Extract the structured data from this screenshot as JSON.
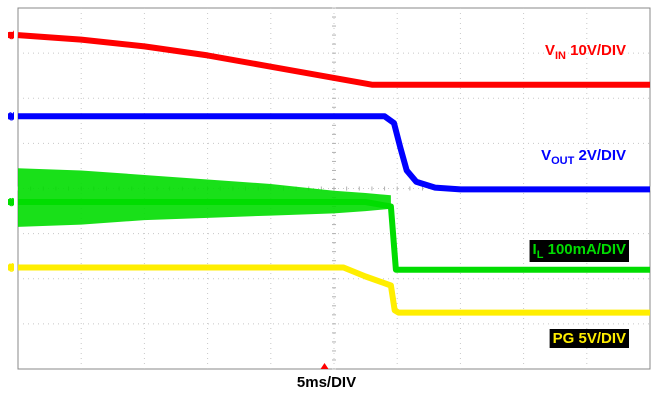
{
  "chart_data": {
    "type": "line",
    "title": "",
    "timebase_label": "5ms/DIV",
    "x_unit": "divisions",
    "xlim": [
      0,
      10
    ],
    "ylim": [
      0,
      8
    ],
    "grid": true,
    "trigger_marker_div": 4.85,
    "channels": [
      {
        "id": "ch1",
        "marker": "C1",
        "label_main": "V",
        "label_sub": "IN",
        "label_rest": " 10V/DIV",
        "color": "#ff0000",
        "label_bg": "",
        "x": [
          0,
          1,
          2,
          3,
          4,
          5,
          5.6,
          6,
          7,
          8,
          9,
          10
        ],
        "y": [
          7.4,
          7.3,
          7.15,
          6.95,
          6.7,
          6.45,
          6.3,
          6.3,
          6.3,
          6.3,
          6.3,
          6.3
        ]
      },
      {
        "id": "ch2",
        "marker": "C2",
        "label_main": "V",
        "label_sub": "OUT",
        "label_rest": " 2V/DIV",
        "color": "#0000ff",
        "label_bg": "",
        "x": [
          0,
          3,
          5,
          5.8,
          5.95,
          6.05,
          6.15,
          6.3,
          6.6,
          7,
          8,
          9,
          10
        ],
        "y": [
          5.6,
          5.6,
          5.6,
          5.6,
          5.45,
          4.9,
          4.4,
          4.15,
          4.02,
          3.98,
          3.98,
          3.98,
          3.98
        ]
      },
      {
        "id": "ch3",
        "marker": "C3",
        "label_main": "I",
        "label_sub": "L",
        "label_rest": " 100mA/DIV",
        "color": "#00dd00",
        "label_bg": "#000000",
        "x": [
          0,
          1,
          2,
          3,
          4,
          5,
          5.5,
          5.9,
          5.98,
          6.02,
          7,
          8,
          9,
          10
        ],
        "y": [
          3.7,
          3.7,
          3.7,
          3.7,
          3.7,
          3.7,
          3.7,
          3.6,
          2.2,
          2.2,
          2.2,
          2.2,
          2.2,
          2.2
        ],
        "ripple_top": [
          4.45,
          4.4,
          4.3,
          4.2,
          4.1,
          3.95,
          3.9,
          3.85
        ],
        "ripple_bottom": [
          3.15,
          3.2,
          3.3,
          3.35,
          3.4,
          3.45,
          3.5,
          3.55
        ],
        "ripple_x": [
          0,
          1,
          2,
          3,
          4,
          5,
          5.5,
          5.9
        ]
      },
      {
        "id": "ch4",
        "marker": "C4",
        "label_main": "PG",
        "label_sub": "",
        "label_rest": " 5V/DIV",
        "color": "#ffee00",
        "label_bg": "#000000",
        "x": [
          0,
          3,
          5,
          5.15,
          5.5,
          5.9,
          5.96,
          6.02,
          7,
          8,
          9,
          10
        ],
        "y": [
          2.25,
          2.25,
          2.25,
          2.25,
          2.05,
          1.85,
          1.3,
          1.25,
          1.25,
          1.25,
          1.25,
          1.25
        ]
      }
    ]
  }
}
